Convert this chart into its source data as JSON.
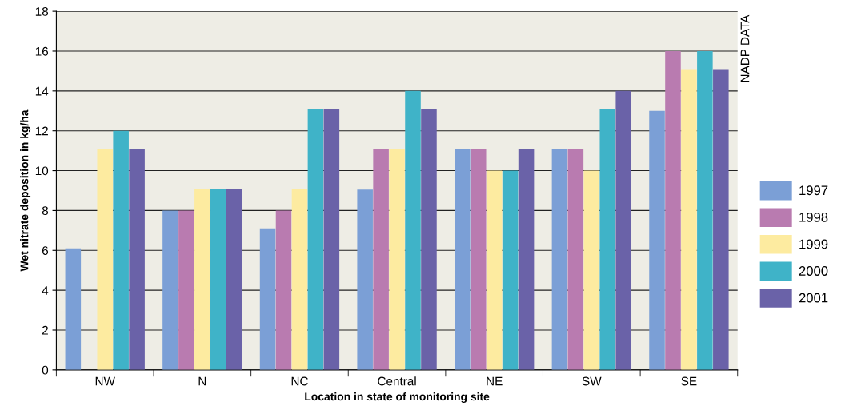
{
  "chart_data": {
    "type": "bar",
    "categories": [
      "NW",
      "N",
      "NC",
      "Central",
      "NE",
      "SW",
      "SE"
    ],
    "series": [
      {
        "name": "1997",
        "color": "#7b9fd6",
        "values": [
          6.1,
          8,
          7.1,
          9.05,
          11.1,
          11.1,
          13
        ]
      },
      {
        "name": "1998",
        "color": "#b97bb0",
        "values": [
          null,
          8,
          8,
          11.1,
          11.1,
          11.1,
          16
        ]
      },
      {
        "name": "1999",
        "color": "#fdeba0",
        "values": [
          11.1,
          9.1,
          9.1,
          11.1,
          10,
          10,
          15.1
        ]
      },
      {
        "name": "2000",
        "color": "#3fb3c8",
        "values": [
          12,
          9.1,
          13.1,
          14,
          10,
          13.1,
          16
        ]
      },
      {
        "name": "2001",
        "color": "#6a62a8",
        "values": [
          11.1,
          9.1,
          13.1,
          13.1,
          11.1,
          14,
          15.1
        ]
      }
    ],
    "xlabel": "Location in state of monitoring site",
    "ylabel": "Wet nitrate deposition in kg/ha",
    "ylim": [
      0,
      18
    ],
    "yticks": [
      0,
      2,
      4,
      6,
      8,
      10,
      12,
      14,
      16,
      18
    ],
    "grid": "y",
    "legend": "right",
    "annotations": [
      "NADP DATA"
    ]
  }
}
